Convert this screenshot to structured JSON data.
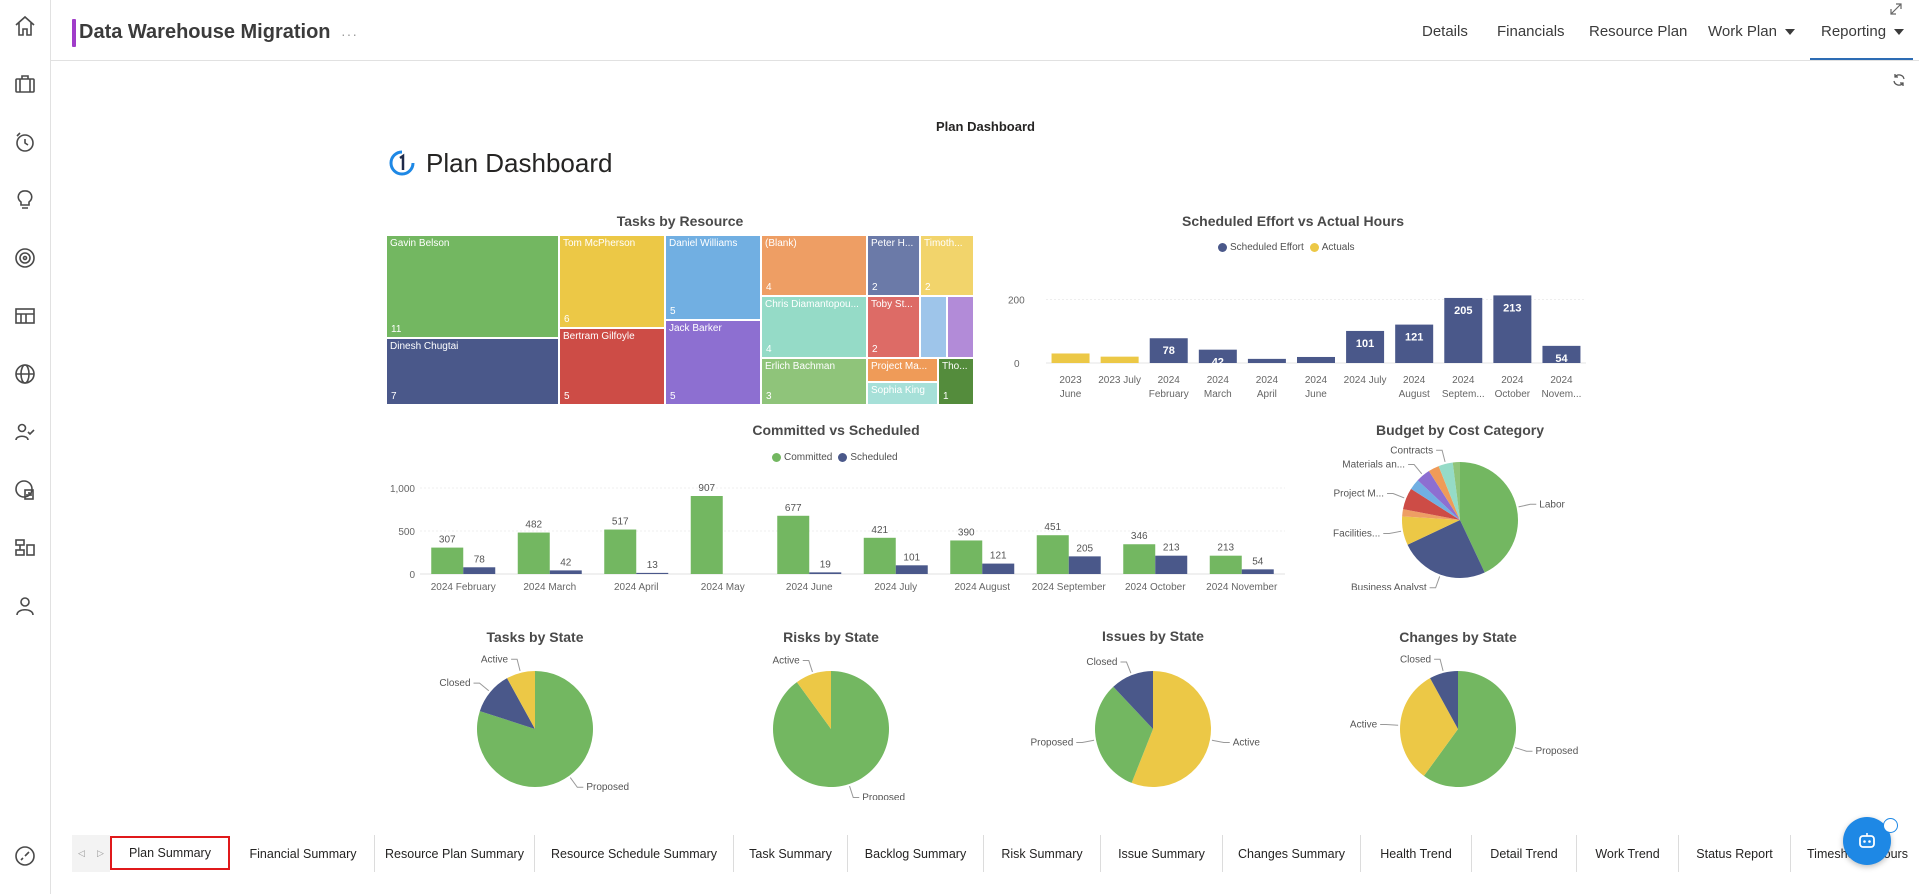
{
  "app": {
    "title": "Data Warehouse Migration",
    "title_more": "···"
  },
  "rail_icons": [
    "home-icon",
    "briefcase-icon",
    "timesheet-icon",
    "idea-icon",
    "target-icon",
    "board-icon",
    "globe-icon",
    "resources-icon",
    "report-icon",
    "hierarchy-icon",
    "user-icon",
    "dashboard-icon"
  ],
  "nav": {
    "details": "Details",
    "financials": "Financials",
    "resource_plan": "Resource Plan",
    "work_plan": "Work Plan",
    "reporting": "Reporting"
  },
  "dashboard": {
    "header": "Plan Dashboard",
    "title": "Plan Dashboard"
  },
  "colors": {
    "green": "#73b761",
    "navy": "#4a588a",
    "yellow": "#ecc846",
    "red": "#cd4c46",
    "blue": "#71afe2",
    "purple": "#8d6fd1",
    "orange": "#ee9e64",
    "teal": "#95dbc7",
    "slate": "#6b7aa8",
    "light_yellow": "#f2d46b",
    "salmon": "#dd6b66",
    "lightblue": "#9ec5ea",
    "lavender": "#b28bd8",
    "lightgreen": "#8fc47a",
    "darkgreen": "#548c3c",
    "orange2": "#ef9b58",
    "aqua": "#a6e0d8",
    "accent": "#2d6cb4"
  },
  "tasks_by_resource": {
    "title": "Tasks by Resource",
    "cells": [
      {
        "name": "Gavin Belson",
        "value": "11"
      },
      {
        "name": "Dinesh Chugtai",
        "value": "7"
      },
      {
        "name": "Tom McPherson",
        "value": "6"
      },
      {
        "name": "Bertram Gilfoyle",
        "value": "5"
      },
      {
        "name": "Daniel Williams",
        "value": "5"
      },
      {
        "name": "Jack Barker",
        "value": "5"
      },
      {
        "name": "(Blank)",
        "value": "4"
      },
      {
        "name": "Chris Diamantopou...",
        "value": "4"
      },
      {
        "name": "Erlich Bachman",
        "value": "3"
      },
      {
        "name": "Peter H...",
        "value": "2"
      },
      {
        "name": "Toby St...",
        "value": "2"
      },
      {
        "name": "Project Ma...",
        "value": ""
      },
      {
        "name": "Sophia King",
        "value": ""
      },
      {
        "name": "Timoth...",
        "value": "2"
      },
      {
        "name": "Tho...",
        "value": "1"
      }
    ]
  },
  "effort_vs_actual": {
    "title": "Scheduled Effort vs Actual Hours",
    "legend": [
      "Scheduled Effort",
      "Actuals"
    ],
    "chart_data": {
      "type": "bar",
      "title": "Scheduled Effort vs Actual Hours",
      "categories": [
        [
          "2023",
          "June"
        ],
        [
          "2023 July",
          ""
        ],
        [
          "2024",
          "February"
        ],
        [
          "2024",
          "March"
        ],
        [
          "2024",
          "April"
        ],
        [
          "2024",
          "June"
        ],
        [
          "2024 July",
          ""
        ],
        [
          "2024",
          "August"
        ],
        [
          "2024",
          "Septem..."
        ],
        [
          "2024",
          "October"
        ],
        [
          "2024",
          "Novem..."
        ]
      ],
      "series": [
        {
          "name": "Actuals",
          "values": [
            30,
            20,
            null,
            null,
            null,
            null,
            null,
            null,
            null,
            null,
            null
          ]
        },
        {
          "name": "Scheduled Effort",
          "values": [
            null,
            null,
            78,
            42,
            13,
            19,
            101,
            121,
            205,
            213,
            54
          ]
        }
      ],
      "labels": [
        "",
        "",
        "78",
        "42",
        "",
        "",
        "101",
        "121",
        "205",
        "213",
        "54"
      ],
      "yticks": [
        "0",
        "200"
      ],
      "ylim": [
        0,
        230
      ]
    }
  },
  "committed_vs_scheduled": {
    "title": "Committed vs Scheduled",
    "legend": [
      "Committed",
      "Scheduled"
    ],
    "chart_data": {
      "type": "bar",
      "title": "Committed vs Scheduled",
      "categories": [
        "2024 February",
        "2024 March",
        "2024 April",
        "2024 May",
        "2024 June",
        "2024 July",
        "2024 August",
        "2024 September",
        "2024 October",
        "2024 November"
      ],
      "series": [
        {
          "name": "Committed",
          "values": [
            307,
            482,
            517,
            907,
            677,
            421,
            390,
            451,
            346,
            213
          ]
        },
        {
          "name": "Scheduled",
          "values": [
            78,
            42,
            13,
            0,
            19,
            101,
            121,
            205,
            213,
            54
          ]
        }
      ],
      "committed_labels": [
        "307",
        "482",
        "517",
        "907",
        "677",
        "421",
        "390",
        "451",
        "346",
        "213"
      ],
      "scheduled_labels": [
        "78",
        "42",
        "13",
        "",
        "19",
        "101",
        "121",
        "205",
        "213",
        "54"
      ],
      "yticks": [
        "0",
        "500",
        "1,000"
      ],
      "ylim": [
        0,
        1000
      ]
    }
  },
  "budget_by_cost_category": {
    "title": "Budget by Cost Category",
    "chart_data": {
      "type": "pie",
      "labels": [
        "Labor",
        "Business Analyst",
        "Facilities...",
        "",
        "Project M...",
        "",
        "Materials an...",
        "",
        "Contracts",
        ""
      ],
      "values": [
        43,
        25,
        8,
        2,
        6,
        3,
        4,
        3,
        4,
        2
      ]
    }
  },
  "tasks_by_state": {
    "title": "Tasks by State",
    "chart_data": {
      "type": "pie",
      "labels": [
        "Proposed",
        "Closed",
        "Active"
      ],
      "values": [
        80,
        12,
        8
      ]
    }
  },
  "risks_by_state": {
    "title": "Risks by State",
    "chart_data": {
      "type": "pie",
      "labels": [
        "Proposed",
        "Active"
      ],
      "values": [
        90,
        10
      ]
    }
  },
  "issues_by_state": {
    "title": "Issues by State",
    "chart_data": {
      "type": "pie",
      "labels": [
        "Active",
        "Proposed",
        "Closed"
      ],
      "values": [
        56,
        32,
        12
      ]
    }
  },
  "changes_by_state": {
    "title": "Changes by State",
    "chart_data": {
      "type": "pie",
      "labels": [
        "Proposed",
        "Active",
        "Closed"
      ],
      "values": [
        60,
        32,
        8
      ]
    }
  },
  "tabs": [
    "Plan Summary",
    "Financial Summary",
    "Resource Plan Summary",
    "Resource Schedule Summary",
    "Task Summary",
    "Backlog Summary",
    "Risk Summary",
    "Issue Summary",
    "Changes Summary",
    "Health Trend",
    "Detail Trend",
    "Work Trend",
    "Status Report",
    "Timesheets Hours"
  ]
}
